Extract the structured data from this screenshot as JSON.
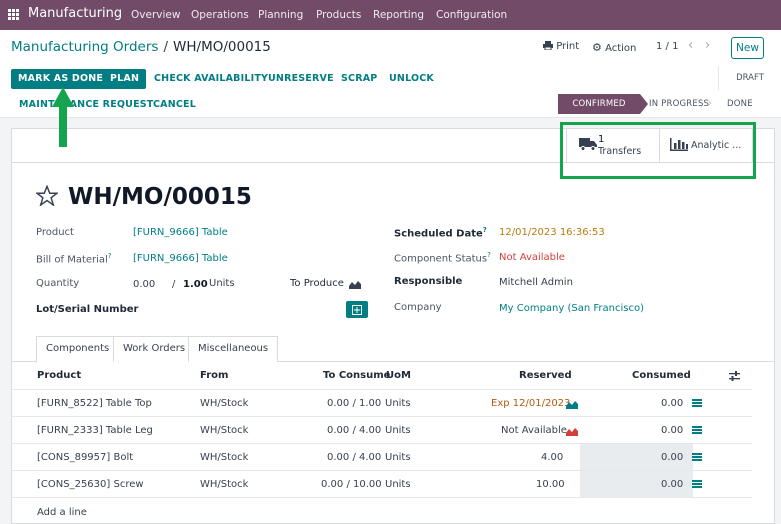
{
  "topnav": {
    "app": "Manufacturing",
    "menu": [
      "Overview",
      "Operations",
      "Planning",
      "Products",
      "Reporting",
      "Configuration"
    ]
  },
  "breadcrumb": {
    "parent": "Manufacturing Orders",
    "separator": "/",
    "current": "WH/MO/00015"
  },
  "controls": {
    "print": "Print",
    "action": "Action",
    "pager": "1 / 1",
    "new": "New"
  },
  "actions": {
    "mark_done": "MARK AS DONE",
    "plan": "PLAN",
    "check_availability": "CHECK AVAILABILITY",
    "unreserve": "UNRESERVE",
    "scrap": "SCRAP",
    "unlock": "UNLOCK",
    "maintenance": "MAINTENANCE REQUEST",
    "cancel": "CANCEL"
  },
  "stages": {
    "draft": "DRAFT",
    "confirmed": "CONFIRMED",
    "in_progress": "IN PROGRESS",
    "done": "DONE"
  },
  "smart_buttons": {
    "transfers_count": "1",
    "transfers_label": "Transfers",
    "analytic_label": "Analytic ..."
  },
  "record": {
    "name": "WH/MO/00015",
    "product_label": "Product",
    "product": "[FURN_9666] Table",
    "bom_label": "Bill of Material",
    "bom_help": "?",
    "bom": "[FURN_9666] Table",
    "qty_label": "Quantity",
    "qty_done": "0.00",
    "qty_sep": "/",
    "qty_total": "1.00",
    "qty_uom": "Units",
    "to_produce": "To Produce",
    "lot_label": "Lot/Serial Number",
    "scheduled_label": "Scheduled Date",
    "scheduled_help": "?",
    "scheduled": "12/01/2023 16:36:53",
    "component_status_label": "Component Status",
    "component_status_help": "?",
    "component_status": "Not Available",
    "responsible_label": "Responsible",
    "responsible": "Mitchell Admin",
    "company_label": "Company",
    "company": "My Company (San Francisco)"
  },
  "tabs": [
    "Components",
    "Work Orders",
    "Miscellaneous"
  ],
  "table": {
    "headers": {
      "product": "Product",
      "from": "From",
      "to_consume": "To Consume",
      "uom": "UoM",
      "reserved": "Reserved",
      "consumed": "Consumed"
    },
    "rows": [
      {
        "product": "[FURN_8522] Table Top",
        "from": "WH/Stock",
        "consume": "0.00 /  1.00",
        "uom": "Units",
        "reserved": "Exp 12/01/2023",
        "consumed": "0.00"
      },
      {
        "product": "[FURN_2333] Table Leg",
        "from": "WH/Stock",
        "consume": "0.00 /  4.00",
        "uom": "Units",
        "reserved": "Not Available",
        "consumed": "0.00"
      },
      {
        "product": "[CONS_89957] Bolt",
        "from": "WH/Stock",
        "consume": "0.00 /  4.00",
        "uom": "Units",
        "reserved": "4.00",
        "consumed": "0.00"
      },
      {
        "product": "[CONS_25630] Screw",
        "from": "WH/Stock",
        "consume": "0.00 /  10.00",
        "uom": "Units",
        "reserved": "10.00",
        "consumed": "0.00"
      }
    ],
    "add_line": "Add a line"
  },
  "colors": {
    "brand": "#714b67",
    "accent": "#017e84",
    "highlight": "#14a44d",
    "danger": "#d23f3a"
  }
}
